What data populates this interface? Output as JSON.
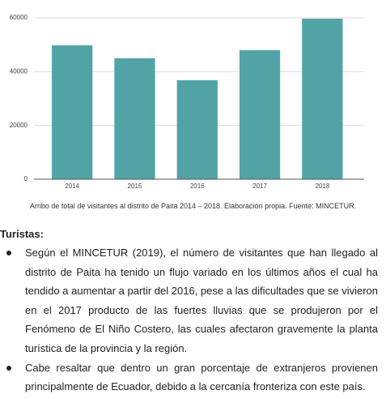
{
  "chart_data": {
    "type": "bar",
    "categories": [
      "2014",
      "2015",
      "2016",
      "2017",
      "2018"
    ],
    "values": [
      49800,
      45000,
      36800,
      48000,
      59700
    ],
    "color": "#52a3a6",
    "ylim": [
      0,
      60000
    ],
    "yticks": [
      0,
      20000,
      40000,
      60000
    ],
    "grid": true
  },
  "caption": "Arribo de total de visitantes al distrito de Paita 2014 – 2018. Elaboración propia. Fuente: MINCETUR.",
  "section_title": "Turistas:",
  "bullets": [
    "Según el MINCETUR (2019), el número de visitantes que han llegado al distrito de Paita ha tenido un flujo variado en los últimos años el cual ha tendido a aumentar a partir del 2016, pese a las dificultades que se vivieron en el 2017 producto de las fuertes lluvias que se produjeron por el Fenómeno de El Niño Costero, las cuales afectaron gravemente la planta turística de la provincia y la región.",
    "Cabe resaltar que dentro un gran porcentaje de extranjeros provienen principalmente de Ecuador, debido a la cercanía fronteriza con este país."
  ]
}
